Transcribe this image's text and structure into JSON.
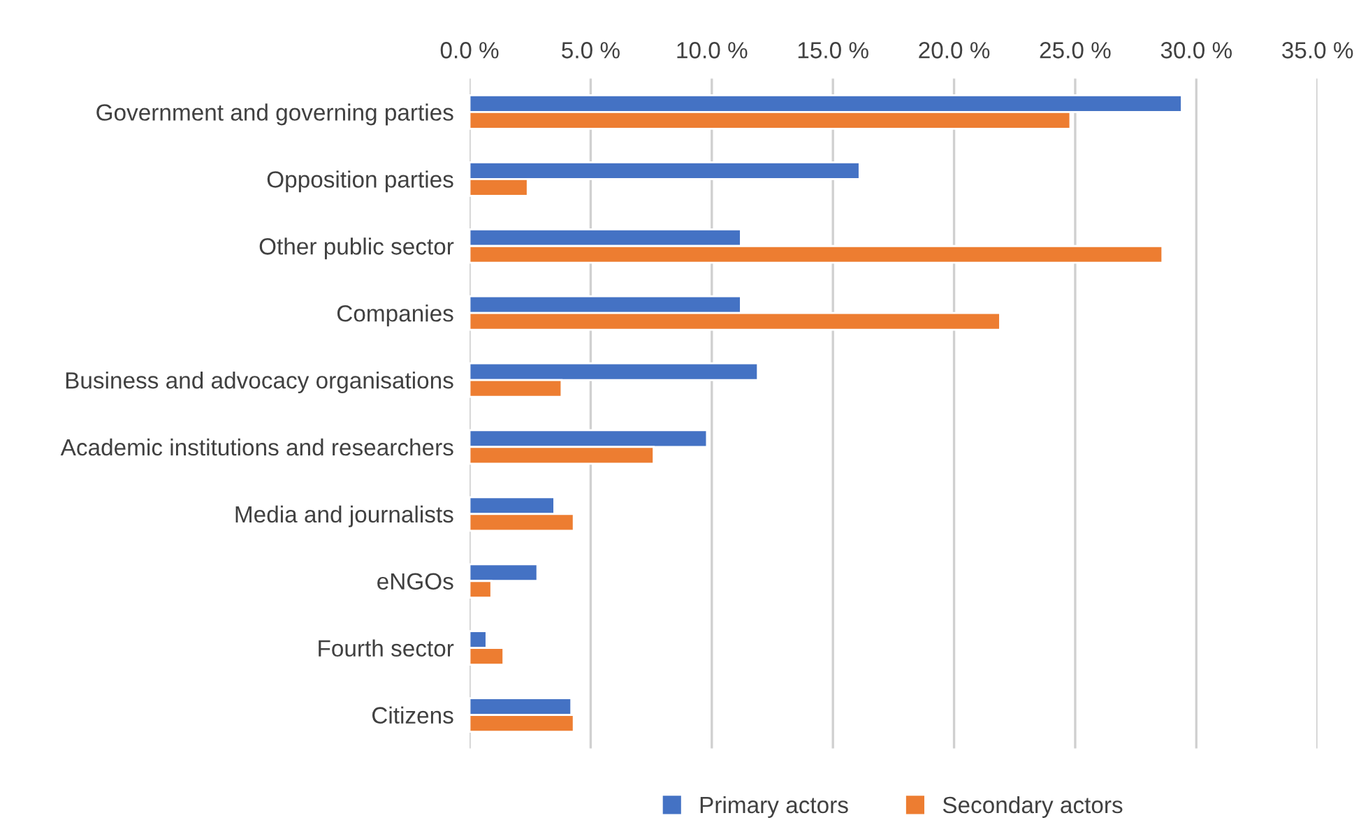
{
  "chart_data": {
    "type": "bar",
    "orientation": "horizontal",
    "categories": [
      "Government and governing parties",
      "Opposition parties",
      "Other public sector",
      "Companies",
      "Business and advocacy organisations",
      "Academic institutions and researchers",
      "Media and journalists",
      "eNGOs",
      "Fourth sector",
      "Citizens"
    ],
    "series": [
      {
        "name": "Primary actors",
        "color": "#4472c4",
        "values": [
          29.4,
          16.1,
          11.2,
          11.2,
          11.9,
          9.8,
          3.5,
          2.8,
          0.7,
          4.2
        ]
      },
      {
        "name": "Secondary actors",
        "color": "#ed7d31",
        "values": [
          24.8,
          2.4,
          28.6,
          21.9,
          3.8,
          7.6,
          4.3,
          0.9,
          1.4,
          4.3
        ]
      }
    ],
    "xlim": [
      0,
      35
    ],
    "xticks": [
      {
        "value": 0,
        "label": "0.0 %"
      },
      {
        "value": 5,
        "label": "5.0 %"
      },
      {
        "value": 10,
        "label": "10.0 %"
      },
      {
        "value": 15,
        "label": "15.0 %"
      },
      {
        "value": 20,
        "label": "20.0 %"
      },
      {
        "value": 25,
        "label": "25.0 %"
      },
      {
        "value": 30,
        "label": "30.0 %"
      },
      {
        "value": 35,
        "label": "35.0 %"
      }
    ],
    "grid": "x",
    "legend": "bottom"
  }
}
